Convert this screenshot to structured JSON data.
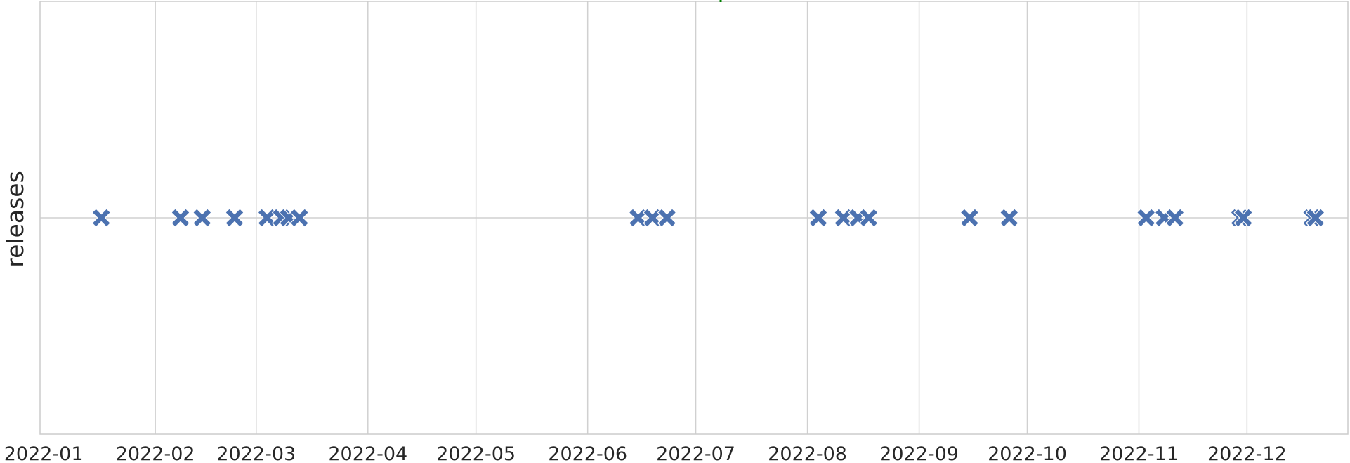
{
  "chart_data": {
    "type": "scatter",
    "marker": "X",
    "ylabel": "releases",
    "xlabel": "",
    "x_ticks": [
      "2022-01",
      "2022-02",
      "2022-03",
      "2022-04",
      "2022-05",
      "2022-06",
      "2022-07",
      "2022-08",
      "2022-09",
      "2022-10",
      "2022-11",
      "2022-12"
    ],
    "xlim": [
      "2021-12-31",
      "2022-12-29"
    ],
    "grid": true,
    "colors": {
      "marker": "#4c72b0",
      "grid": "#d0d0d0",
      "axis": "#cccccc",
      "accent": "#008000"
    },
    "points": [
      "2022-01-17",
      "2022-02-08",
      "2022-02-14",
      "2022-02-23",
      "2022-03-04",
      "2022-03-08",
      "2022-03-10",
      "2022-03-13",
      "2022-06-15",
      "2022-06-19",
      "2022-06-23",
      "2022-08-04",
      "2022-08-11",
      "2022-08-15",
      "2022-08-18",
      "2022-09-15",
      "2022-09-26",
      "2022-11-03",
      "2022-11-08",
      "2022-11-11",
      "2022-11-29",
      "2022-11-30",
      "2022-12-19",
      "2022-12-20"
    ]
  }
}
